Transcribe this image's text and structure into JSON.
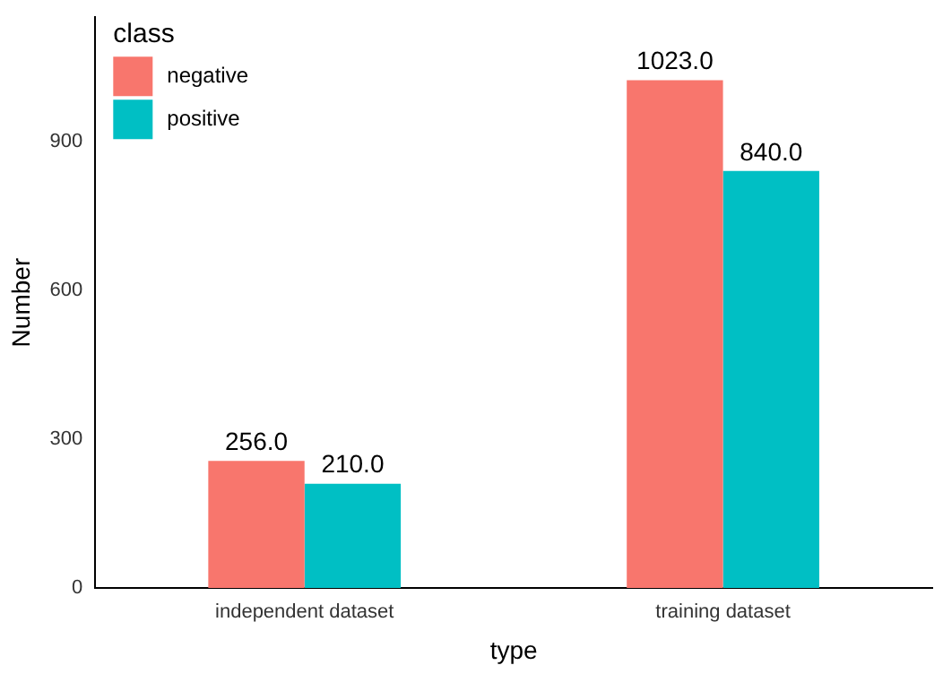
{
  "chart_data": {
    "type": "bar",
    "xlabel": "type",
    "ylabel": "Number",
    "legend_title": "class",
    "categories": [
      "independent dataset",
      "training dataset"
    ],
    "series": [
      {
        "name": "negative",
        "color": "#f8766d",
        "values": [
          256,
          1023
        ],
        "value_labels": [
          "256.0",
          "1023.0"
        ]
      },
      {
        "name": "positive",
        "color": "#00bfc4",
        "values": [
          210,
          840
        ],
        "value_labels": [
          "210.0",
          "840.0"
        ]
      }
    ],
    "ylim": [
      0,
      1150
    ],
    "yticks": [
      0,
      300,
      600,
      900
    ],
    "grid": false,
    "legend": "top left"
  }
}
